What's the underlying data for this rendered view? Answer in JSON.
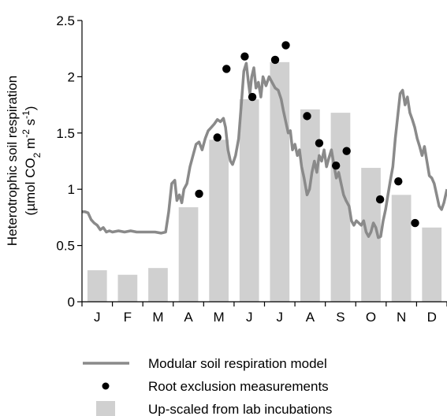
{
  "chart_data": {
    "type": "bar",
    "categories": [
      "J",
      "F",
      "M",
      "A",
      "M",
      "J",
      "J",
      "A",
      "S",
      "O",
      "N",
      "D"
    ],
    "ylabel_line1": "Heterotrophic soil respiration",
    "ylabel_line2_parts": [
      "(µmol CO",
      "2",
      " m",
      "-2",
      " s",
      "-1",
      ")"
    ],
    "ylim": [
      0,
      2.5
    ],
    "yticks": [
      "0",
      "0.5",
      "1",
      "1.5",
      "2",
      "2.5"
    ],
    "ytick_values": [
      0,
      0.5,
      1,
      1.5,
      2,
      2.5
    ],
    "grid": false,
    "legend_position": "bottom",
    "series": [
      {
        "name": "Up-scaled from lab incubations",
        "kind": "bar",
        "color": "#d0d0d0",
        "values": [
          0.28,
          0.24,
          0.3,
          0.84,
          1.44,
          1.8,
          2.13,
          1.71,
          1.68,
          1.19,
          0.95,
          0.66
        ]
      },
      {
        "name": "Root exclusion measurements",
        "kind": "scatter",
        "color": "#000000",
        "points": [
          [
            3.85,
            0.96
          ],
          [
            4.45,
            1.46
          ],
          [
            4.75,
            2.07
          ],
          [
            5.35,
            2.18
          ],
          [
            5.6,
            1.82
          ],
          [
            6.35,
            2.15
          ],
          [
            6.7,
            2.28
          ],
          [
            7.4,
            1.65
          ],
          [
            7.8,
            1.41
          ],
          [
            8.35,
            1.21
          ],
          [
            8.7,
            1.34
          ],
          [
            9.8,
            0.91
          ],
          [
            10.4,
            1.07
          ],
          [
            10.95,
            0.7
          ]
        ]
      },
      {
        "name": "Modular soil respiration model",
        "kind": "line",
        "color": "#8a8a8a",
        "points": [
          [
            0.0,
            0.8
          ],
          [
            0.1,
            0.8
          ],
          [
            0.2,
            0.79
          ],
          [
            0.3,
            0.73
          ],
          [
            0.4,
            0.7
          ],
          [
            0.5,
            0.68
          ],
          [
            0.6,
            0.64
          ],
          [
            0.7,
            0.66
          ],
          [
            0.8,
            0.62
          ],
          [
            0.9,
            0.63
          ],
          [
            1.0,
            0.62
          ],
          [
            1.2,
            0.63
          ],
          [
            1.4,
            0.62
          ],
          [
            1.6,
            0.63
          ],
          [
            1.8,
            0.62
          ],
          [
            2.0,
            0.62
          ],
          [
            2.2,
            0.62
          ],
          [
            2.4,
            0.62
          ],
          [
            2.6,
            0.61
          ],
          [
            2.75,
            0.62
          ],
          [
            2.85,
            0.8
          ],
          [
            2.95,
            1.05
          ],
          [
            3.05,
            1.08
          ],
          [
            3.12,
            0.9
          ],
          [
            3.2,
            0.95
          ],
          [
            3.28,
            0.88
          ],
          [
            3.35,
            1.0
          ],
          [
            3.45,
            1.05
          ],
          [
            3.55,
            1.2
          ],
          [
            3.65,
            1.3
          ],
          [
            3.75,
            1.4
          ],
          [
            3.85,
            1.42
          ],
          [
            3.95,
            1.35
          ],
          [
            4.05,
            1.45
          ],
          [
            4.15,
            1.52
          ],
          [
            4.25,
            1.55
          ],
          [
            4.35,
            1.58
          ],
          [
            4.45,
            1.62
          ],
          [
            4.55,
            1.6
          ],
          [
            4.65,
            1.63
          ],
          [
            4.72,
            1.55
          ],
          [
            4.8,
            1.35
          ],
          [
            4.88,
            1.25
          ],
          [
            4.95,
            1.22
          ],
          [
            5.05,
            1.3
          ],
          [
            5.15,
            1.45
          ],
          [
            5.25,
            1.8
          ],
          [
            5.32,
            2.05
          ],
          [
            5.4,
            2.12
          ],
          [
            5.47,
            1.95
          ],
          [
            5.52,
            1.85
          ],
          [
            5.58,
            2.0
          ],
          [
            5.65,
            2.08
          ],
          [
            5.72,
            1.9
          ],
          [
            5.8,
            1.95
          ],
          [
            5.88,
            1.82
          ],
          [
            5.95,
            2.0
          ],
          [
            6.05,
            1.92
          ],
          [
            6.15,
            2.0
          ],
          [
            6.25,
            1.95
          ],
          [
            6.35,
            1.9
          ],
          [
            6.45,
            1.88
          ],
          [
            6.55,
            1.8
          ],
          [
            6.62,
            1.7
          ],
          [
            6.7,
            1.6
          ],
          [
            6.78,
            1.5
          ],
          [
            6.85,
            1.52
          ],
          [
            6.92,
            1.35
          ],
          [
            7.0,
            1.4
          ],
          [
            7.08,
            1.3
          ],
          [
            7.15,
            1.35
          ],
          [
            7.22,
            1.2
          ],
          [
            7.3,
            1.1
          ],
          [
            7.4,
            0.95
          ],
          [
            7.48,
            1.0
          ],
          [
            7.56,
            1.15
          ],
          [
            7.64,
            1.25
          ],
          [
            7.72,
            1.15
          ],
          [
            7.8,
            1.3
          ],
          [
            7.88,
            1.25
          ],
          [
            7.96,
            1.35
          ],
          [
            8.04,
            1.2
          ],
          [
            8.12,
            1.28
          ],
          [
            8.2,
            1.35
          ],
          [
            8.28,
            1.22
          ],
          [
            8.36,
            1.1
          ],
          [
            8.44,
            1.15
          ],
          [
            8.52,
            1.05
          ],
          [
            8.6,
            0.95
          ],
          [
            8.68,
            0.9
          ],
          [
            8.78,
            0.85
          ],
          [
            8.86,
            0.72
          ],
          [
            8.94,
            0.68
          ],
          [
            9.02,
            0.72
          ],
          [
            9.1,
            0.7
          ],
          [
            9.18,
            0.68
          ],
          [
            9.26,
            0.72
          ],
          [
            9.34,
            0.62
          ],
          [
            9.42,
            0.58
          ],
          [
            9.5,
            0.62
          ],
          [
            9.58,
            0.7
          ],
          [
            9.66,
            0.66
          ],
          [
            9.74,
            0.57
          ],
          [
            9.82,
            0.58
          ],
          [
            9.9,
            0.72
          ],
          [
            9.98,
            0.82
          ],
          [
            10.06,
            0.95
          ],
          [
            10.14,
            1.08
          ],
          [
            10.22,
            1.2
          ],
          [
            10.3,
            1.45
          ],
          [
            10.38,
            1.65
          ],
          [
            10.46,
            1.85
          ],
          [
            10.54,
            1.88
          ],
          [
            10.62,
            1.75
          ],
          [
            10.7,
            1.82
          ],
          [
            10.78,
            1.68
          ],
          [
            10.86,
            1.62
          ],
          [
            10.94,
            1.55
          ],
          [
            11.02,
            1.45
          ],
          [
            11.1,
            1.38
          ],
          [
            11.18,
            1.3
          ],
          [
            11.26,
            1.38
          ],
          [
            11.34,
            1.25
          ],
          [
            11.42,
            1.12
          ],
          [
            11.5,
            1.1
          ],
          [
            11.58,
            1.05
          ],
          [
            11.66,
            0.95
          ],
          [
            11.74,
            0.85
          ],
          [
            11.82,
            0.82
          ],
          [
            11.9,
            0.88
          ],
          [
            12.0,
            1.0
          ]
        ]
      }
    ],
    "legend": [
      {
        "label": "Modular soil respiration model",
        "kind": "line"
      },
      {
        "label": "Root exclusion measurements",
        "kind": "scatter"
      },
      {
        "label": "Up-scaled from lab incubations",
        "kind": "bar"
      }
    ]
  }
}
